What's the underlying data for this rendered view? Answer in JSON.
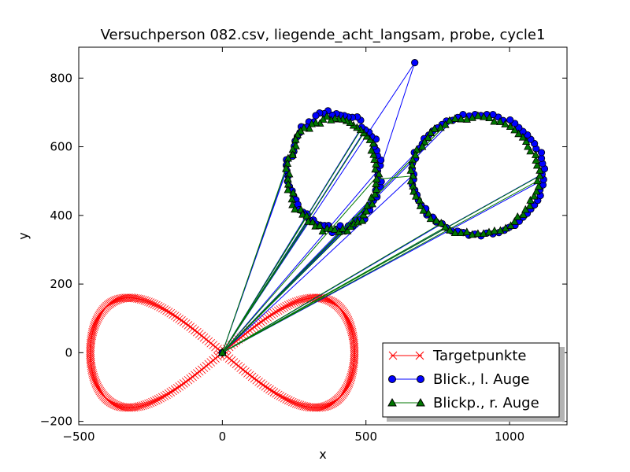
{
  "chart_data": {
    "type": "line",
    "title": "Versuchperson 082.csv, liegende_acht_langsam, probe, cycle1",
    "xlabel": "x",
    "ylabel": "y",
    "xlim": [
      -500,
      1200
    ],
    "ylim": [
      -210,
      890
    ],
    "xticks": [
      -500,
      0,
      500,
      1000
    ],
    "yticks": [
      -200,
      0,
      200,
      400,
      600,
      800
    ],
    "grid": false,
    "legend_position": "lower-right",
    "series": [
      {
        "name": "Targetpunkte",
        "color": "#ff0000",
        "marker": "x",
        "shape": "figure-eight",
        "center": [
          0,
          0
        ],
        "half_width": 460,
        "half_height": 160,
        "points": 360
      },
      {
        "name": "Blick., l. Auge",
        "color": "#0000ff",
        "marker": "circle",
        "origin": [
          0,
          0
        ],
        "far_point": [
          670,
          845
        ],
        "left_loop": {
          "cx": 390,
          "cy": 530,
          "rx": 160,
          "ry": 170
        },
        "right_loop": {
          "cx": 890,
          "cy": 520,
          "rx": 230,
          "ry": 175
        },
        "loop_points": 70
      },
      {
        "name": "Blickp., r. Auge",
        "color": "#007700",
        "marker": "triangle",
        "origin": [
          0,
          0
        ],
        "left_loop": {
          "cx": 385,
          "cy": 520,
          "rx": 155,
          "ry": 165
        },
        "right_loop": {
          "cx": 880,
          "cy": 515,
          "rx": 220,
          "ry": 170
        },
        "loop_points": 70
      }
    ]
  }
}
